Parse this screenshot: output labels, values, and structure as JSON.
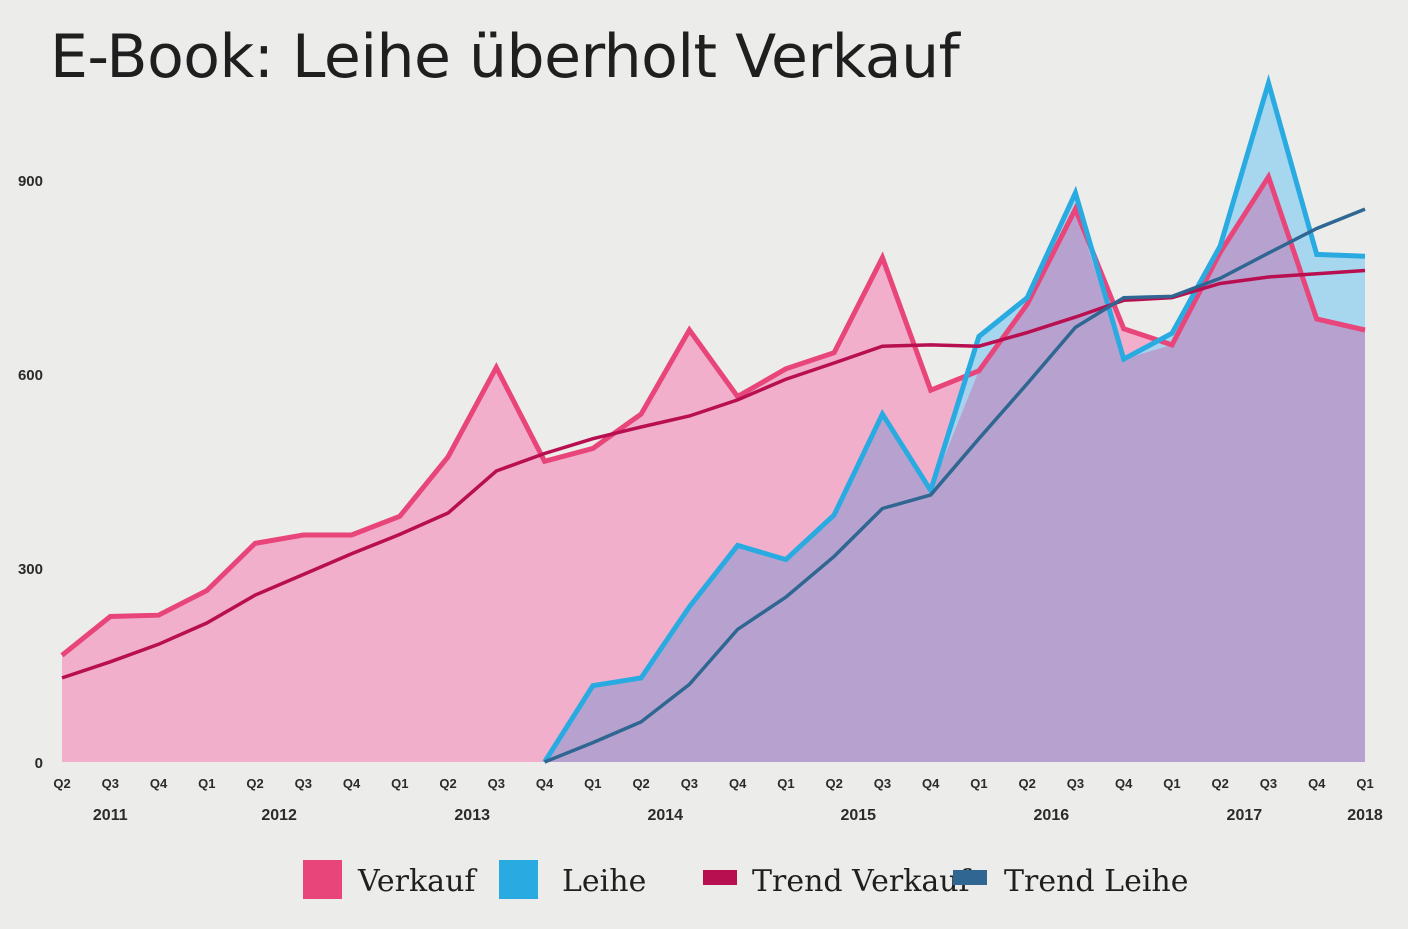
{
  "chart_data": {
    "type": "area",
    "title": "E-Book: Leihe überholt Verkauf",
    "xlabel": "",
    "ylabel": "",
    "ylim": [
      0,
      1080
    ],
    "y_ticks": [
      0,
      300,
      600,
      900
    ],
    "grid": false,
    "legend_position": "bottom",
    "categories": [
      "Q2",
      "Q3",
      "Q4",
      "Q1",
      "Q2",
      "Q3",
      "Q4",
      "Q1",
      "Q2",
      "Q3",
      "Q4",
      "Q1",
      "Q2",
      "Q3",
      "Q4",
      "Q1",
      "Q2",
      "Q3",
      "Q4",
      "Q1",
      "Q2",
      "Q3",
      "Q4",
      "Q1",
      "Q2",
      "Q3",
      "Q4",
      "Q1"
    ],
    "year_labels": [
      {
        "label": "2011",
        "index": 1
      },
      {
        "label": "2012",
        "index": 4.5
      },
      {
        "label": "2013",
        "index": 8.5
      },
      {
        "label": "2014",
        "index": 12.5
      },
      {
        "label": "2015",
        "index": 16.5
      },
      {
        "label": "2016",
        "index": 20.5
      },
      {
        "label": "2017",
        "index": 24.5
      },
      {
        "label": "2018",
        "index": 27
      }
    ],
    "series": [
      {
        "name": "Verkauf",
        "kind": "area",
        "color": "#e8457a",
        "fill": "#f2a8c8",
        "values": [
          165,
          225,
          227,
          265,
          338,
          351,
          351,
          380,
          472,
          610,
          465,
          485,
          538,
          668,
          565,
          608,
          633,
          780,
          575,
          605,
          708,
          855,
          670,
          645,
          788,
          905,
          685,
          668
        ]
      },
      {
        "name": "Leihe",
        "kind": "area",
        "color": "#29abe2",
        "fill": "#9fd5f0",
        "start_index": 10,
        "values": [
          null,
          null,
          null,
          null,
          null,
          null,
          null,
          null,
          null,
          null,
          0,
          118,
          130,
          240,
          335,
          313,
          382,
          538,
          420,
          658,
          718,
          880,
          623,
          663,
          798,
          1050,
          785,
          782
        ]
      },
      {
        "name": "Trend Verkauf",
        "kind": "line",
        "color": "#b80f50",
        "values": [
          130,
          155,
          182,
          215,
          258,
          290,
          322,
          352,
          385,
          450,
          477,
          500,
          518,
          535,
          560,
          592,
          617,
          643,
          645,
          643,
          664,
          688,
          714,
          718,
          740,
          750,
          755,
          760
        ]
      },
      {
        "name": "Trend Leihe",
        "kind": "line",
        "color": "#2f6792",
        "start_index": 10,
        "values": [
          null,
          null,
          null,
          null,
          null,
          null,
          null,
          null,
          null,
          null,
          0,
          30,
          62,
          120,
          205,
          255,
          318,
          392,
          413,
          500,
          585,
          672,
          718,
          720,
          748,
          787,
          825,
          855
        ]
      }
    ]
  }
}
